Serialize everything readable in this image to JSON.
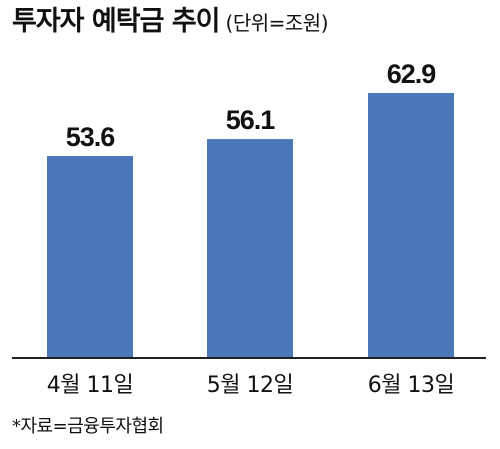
{
  "chart_data": {
    "type": "bar",
    "title": "투자자 예탁금 추이",
    "unit_note": "(단위=조원)",
    "categories": [
      "4월 11일",
      "5월 12일",
      "6월 13일"
    ],
    "values": [
      53.6,
      56.1,
      62.9
    ],
    "value_labels": [
      "53.6",
      "56.1",
      "62.9"
    ],
    "bar_color": "#4a78b8",
    "source": "*자료=금융투자협회"
  }
}
